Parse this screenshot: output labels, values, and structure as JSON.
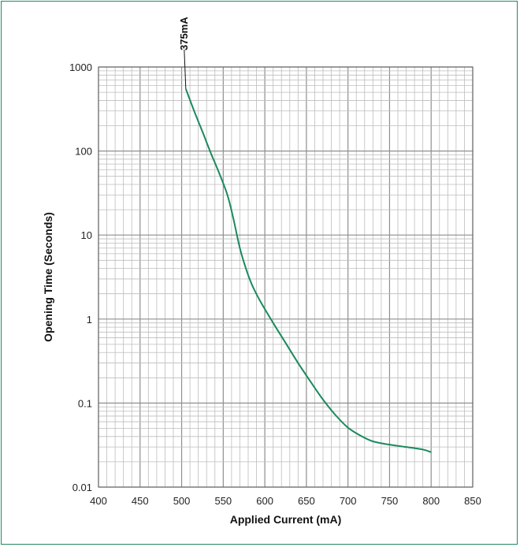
{
  "chart_data": {
    "type": "line",
    "title": "",
    "xlabel": "Applied Current (mA)",
    "ylabel": "Opening Time (Seconds)",
    "xlim": [
      400,
      850
    ],
    "ylim": [
      0.01,
      1000
    ],
    "yscale": "log",
    "grid": true,
    "x_ticks": [
      "400",
      "450",
      "500",
      "550",
      "600",
      "650",
      "700",
      "750",
      "800",
      "850"
    ],
    "y_ticks": [
      "0.01",
      "0.1",
      "1",
      "10",
      "100",
      "1000"
    ],
    "annotation": "375mA",
    "colors": {
      "line": "#1a8a5c",
      "grid": "#bdbdbd",
      "frame": "#1f8a5a"
    },
    "series": [
      {
        "x": [
          505,
          515,
          525,
          535,
          545,
          555,
          562,
          570,
          578,
          585,
          595,
          610,
          625,
          640,
          655,
          670,
          685,
          700,
          715,
          730,
          750,
          770,
          790,
          800
        ],
        "y": [
          550,
          300,
          170,
          95,
          55,
          30,
          16,
          7,
          3.8,
          2.5,
          1.6,
          0.9,
          0.52,
          0.3,
          0.18,
          0.11,
          0.072,
          0.051,
          0.041,
          0.035,
          0.032,
          0.03,
          0.028,
          0.026
        ]
      }
    ]
  }
}
